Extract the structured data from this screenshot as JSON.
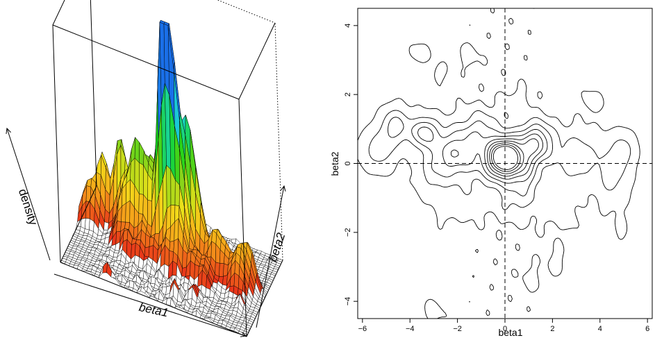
{
  "chart_data": [
    {
      "type": "surface",
      "xlabel": "beta1",
      "ylabel": "beta2",
      "zlabel": "density",
      "colormap": [
        "#e8321a",
        "#f5a31a",
        "#f2e21a",
        "#7fd41a",
        "#1ad41a",
        "#1ad4d4",
        "#1a6fe8"
      ],
      "box": "bounding box with hidden back edges dotted"
    },
    {
      "type": "contour",
      "xlabel": "beta1",
      "ylabel": "beta2",
      "xlim": [
        -6.2,
        6.2
      ],
      "ylim": [
        -4.5,
        4.5
      ],
      "xticks": [
        -6,
        -4,
        -2,
        0,
        2,
        4,
        6
      ],
      "yticks": [
        -4,
        -2,
        0,
        2,
        4
      ],
      "reference_lines": {
        "x": 0,
        "y": 0,
        "style": "dashed"
      },
      "contour_levels": 9,
      "main_peak": {
        "x": 0.0,
        "y": 0.2
      }
    }
  ]
}
